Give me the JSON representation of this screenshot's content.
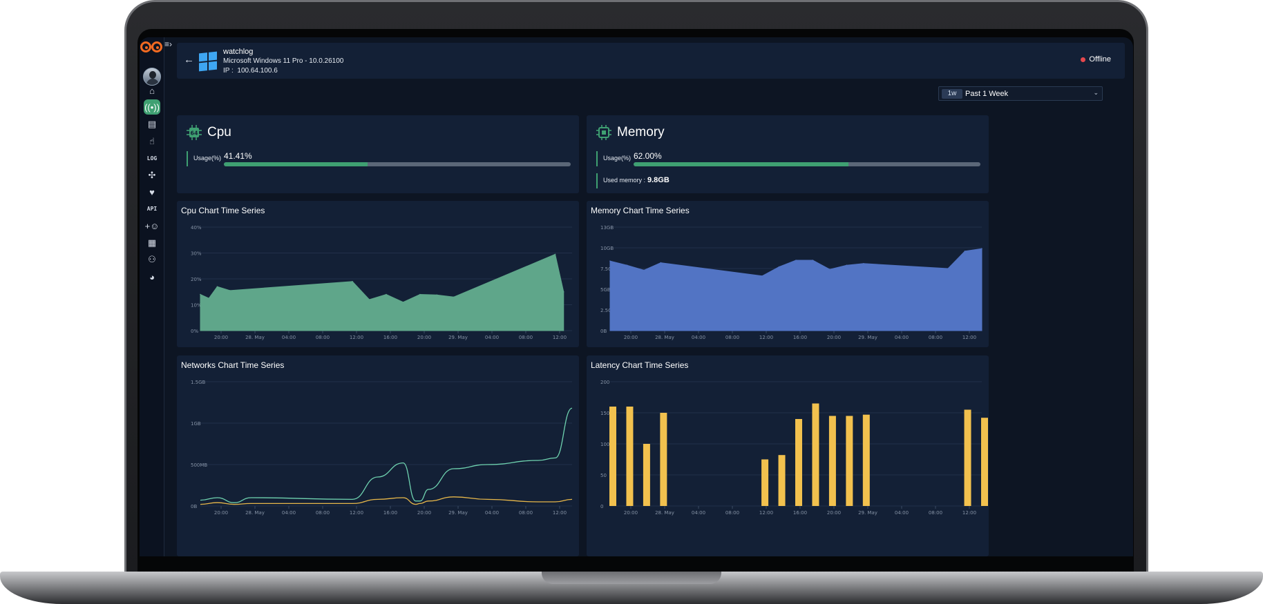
{
  "header": {
    "hostname": "watchlog",
    "os": "Microsoft Windows 11 Pro - 10.0.26100",
    "ip_label": "IP :",
    "ip": "100.64.100.6",
    "status": "Offline",
    "status_color": "#e5484d"
  },
  "sidebar": {
    "icons": [
      "home-icon",
      "broadcast-icon",
      "dashboard-settings-icon",
      "touch-icon",
      "log-icon",
      "puzzle-icon",
      "heartbeat-icon",
      "api-icon",
      "add-user-icon",
      "user-card-icon",
      "webhook-icon",
      "brain-icon"
    ],
    "log_text": "LOG",
    "api_text": "API"
  },
  "time_range": {
    "tag": "1w",
    "label": "Past 1 Week"
  },
  "cpu": {
    "title": "Cpu",
    "chip_text": "64",
    "usage_label": "Usage(%)",
    "usage_value": "41.41%",
    "usage_fraction": 0.4141
  },
  "memory": {
    "title": "Memory",
    "usage_label": "Usage(%)",
    "usage_value": "62.00%",
    "usage_fraction": 0.62,
    "used_label": "Used memory :",
    "used_value": "9.8GB"
  },
  "colors": {
    "accent": "#3fa072",
    "cpu_area": "#5fa68a",
    "mem_area": "#5274c4",
    "net_rx": "#6fd3b0",
    "net_tx": "#e8b84a",
    "latency_bar": "#f2c14e"
  },
  "chart_data": [
    {
      "id": "cpu",
      "type": "area",
      "title": "Cpu Chart Time Series",
      "x_ticks": [
        "20:00",
        "28. May",
        "04:00",
        "08:00",
        "12:00",
        "16:00",
        "20:00",
        "29. May",
        "04:00",
        "08:00",
        "12:00"
      ],
      "y_ticks": [
        "0%",
        "10%",
        "20%",
        "30%",
        "40%"
      ],
      "ylim": [
        0,
        40
      ],
      "x": [
        0,
        1,
        2,
        3.5,
        18,
        20,
        22,
        24,
        26,
        28,
        30,
        42,
        43
      ],
      "values": [
        14,
        12.5,
        17,
        15.5,
        19,
        12,
        14,
        11,
        14,
        13.8,
        13,
        29.5,
        15
      ]
    },
    {
      "id": "memory",
      "type": "area",
      "title": "Memory Chart Time Series",
      "x_ticks": [
        "20:00",
        "28. May",
        "04:00",
        "08:00",
        "12:00",
        "16:00",
        "20:00",
        "29. May",
        "04:00",
        "08:00",
        "12:00"
      ],
      "y_ticks": [
        "0B",
        "2.5GB",
        "5GB",
        "7.5GB",
        "10GB",
        "13GB"
      ],
      "ylim": [
        0,
        12.5
      ],
      "x": [
        0,
        2,
        4,
        6,
        18,
        20,
        22,
        24,
        26,
        28,
        30,
        40,
        42,
        44
      ],
      "values": [
        8.4,
        7.9,
        7.3,
        8.2,
        6.6,
        7.7,
        8.5,
        8.5,
        7.4,
        7.9,
        8.1,
        7.5,
        9.6,
        9.9
      ]
    },
    {
      "id": "networks",
      "type": "line",
      "title": "Networks Chart Time Series",
      "x_ticks": [
        "20:00",
        "28. May",
        "04:00",
        "08:00",
        "12:00",
        "16:00",
        "20:00",
        "29. May",
        "04:00",
        "08:00",
        "12:00"
      ],
      "y_ticks": [
        "0B",
        "500MB",
        "1GB",
        "1.5GB"
      ],
      "ylim": [
        0,
        1.5
      ],
      "x": [
        0,
        2,
        4,
        6,
        18,
        21,
        24,
        25.5,
        26,
        27,
        30,
        34,
        40,
        42,
        44
      ],
      "series": [
        {
          "values": [
            0.07,
            0.1,
            0.04,
            0.1,
            0.08,
            0.35,
            0.52,
            0.06,
            0.06,
            0.2,
            0.45,
            0.5,
            0.55,
            0.58,
            1.18
          ]
        },
        {
          "values": [
            0.02,
            0.04,
            0.02,
            0.03,
            0.03,
            0.08,
            0.1,
            0.02,
            0.03,
            0.06,
            0.11,
            0.08,
            0.05,
            0.05,
            0.08
          ]
        }
      ]
    },
    {
      "id": "latency",
      "type": "bar",
      "title": "Latency Chart Time Series",
      "x_ticks": [
        "20:00",
        "28. May",
        "04:00",
        "08:00",
        "12:00",
        "16:00",
        "20:00",
        "29. May",
        "04:00",
        "08:00",
        "12:00"
      ],
      "y_ticks": [
        "0",
        "50",
        "100",
        "150",
        "200"
      ],
      "ylim": [
        0,
        200
      ],
      "x": [
        0,
        2,
        4,
        6,
        18,
        20,
        22,
        24,
        26,
        28,
        30,
        42,
        44
      ],
      "values": [
        160,
        160,
        100,
        150,
        75,
        82,
        140,
        165,
        145,
        145,
        147,
        155,
        142
      ]
    }
  ]
}
